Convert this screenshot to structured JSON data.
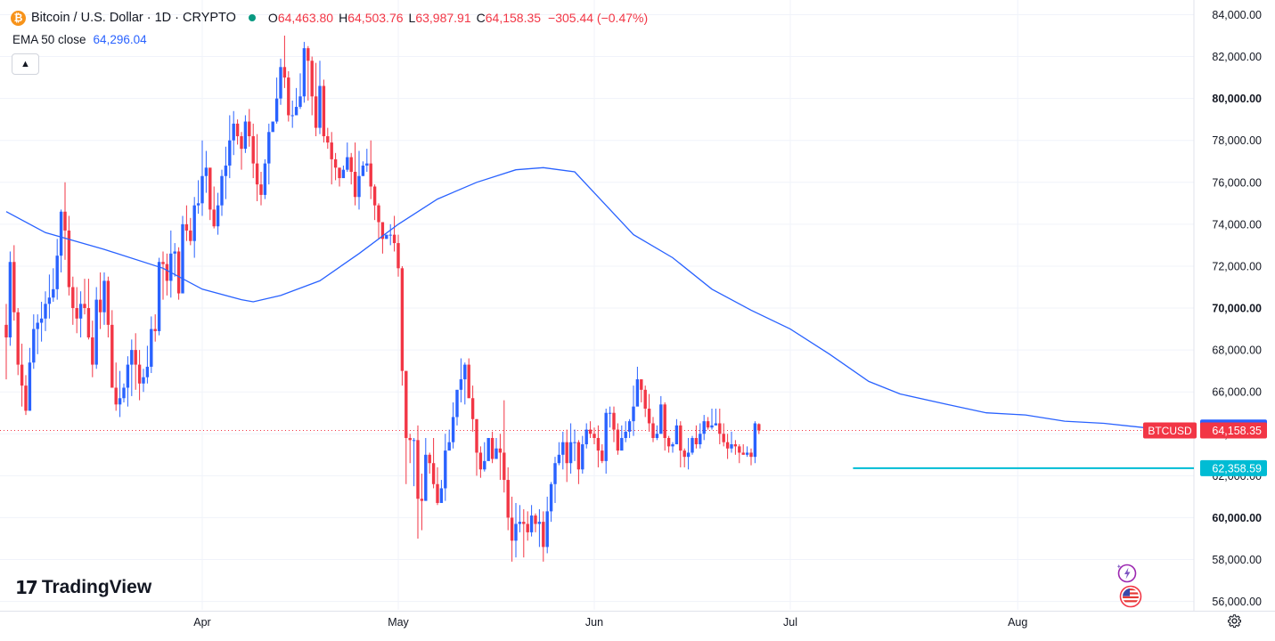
{
  "header": {
    "coin_icon_glyph": "₿",
    "symbol_title": "Bitcoin / U.S. Dollar · 1D · CRYPTO",
    "market_status": "open",
    "status_color": "#089981",
    "ohlc": [
      {
        "label": "O",
        "value": "64,463.80"
      },
      {
        "label": "H",
        "value": "64,503.76"
      },
      {
        "label": "L",
        "value": "63,987.91"
      },
      {
        "label": "C",
        "value": "64,158.35"
      }
    ],
    "change": "−305.44 (−0.47%)"
  },
  "indicator": {
    "label": "EMA 50 close",
    "value": "64,296.04"
  },
  "collapse_glyph": "▲",
  "logo_text": "TradingView",
  "logo_mark": "17",
  "colors": {
    "up": "#2962ff",
    "down": "#f23645",
    "ema": "#2962ff",
    "hline": "#00bcd4",
    "grid": "#f0f3fa",
    "text": "#131722"
  },
  "price_labels": [
    {
      "symbol": "BTCUSD",
      "value": "64,158.35",
      "price": 64158.35,
      "color": "#f23645"
    },
    {
      "value": "64,296.04",
      "price": 64296.04,
      "color": "#2962ff"
    },
    {
      "value": "62,358.59",
      "price": 62358.59,
      "color": "#00bcd4"
    }
  ],
  "chart_data": {
    "type": "candlestick",
    "title": "Bitcoin / U.S. Dollar · 1D · CRYPTO",
    "x_labels": [
      "Apr",
      "May",
      "Jun",
      "Jul",
      "Aug"
    ],
    "y_ticks": [
      56000,
      58000,
      60000,
      62000,
      64000,
      66000,
      68000,
      70000,
      72000,
      74000,
      76000,
      78000,
      80000,
      82000,
      84000
    ],
    "y_tick_labels": [
      "56,000.00",
      "58,000.00",
      "60,000.00",
      "62,000.00",
      "64,000.00",
      "66,000.00",
      "68,000.00",
      "70,000.00",
      "72,000.00",
      "74,000.00",
      "76,000.00",
      "78,000.00",
      "80,000.00",
      "82,000.00",
      "84,000.00"
    ],
    "ylim": [
      55600,
      84700
    ],
    "grid": true,
    "series_ema_name": "EMA 50 close",
    "horizontal_line": 62358.59,
    "candles": [
      [
        69200,
        68600,
        70200,
        66600
      ],
      [
        68600,
        72200,
        72700,
        68200
      ],
      [
        72200,
        69800,
        73000,
        69400
      ],
      [
        69800,
        67300,
        70000,
        66800
      ],
      [
        67300,
        66300,
        68300,
        65300
      ],
      [
        66300,
        65100,
        66800,
        64900
      ],
      [
        65100,
        67400,
        68100,
        65100
      ],
      [
        67400,
        69000,
        69700,
        67100
      ],
      [
        69000,
        69300,
        69700,
        67800
      ],
      [
        69300,
        69500,
        70300,
        68400
      ],
      [
        69500,
        70200,
        70800,
        68900
      ],
      [
        70200,
        70500,
        71600,
        69500
      ],
      [
        70500,
        70900,
        71900,
        70300
      ],
      [
        70900,
        72500,
        73300,
        70400
      ],
      [
        72500,
        74600,
        74700,
        71700
      ],
      [
        74600,
        73700,
        76000,
        72300
      ],
      [
        73700,
        71000,
        74400,
        70600
      ],
      [
        71000,
        70000,
        71500,
        69200
      ],
      [
        70000,
        69500,
        71000,
        68800
      ],
      [
        69500,
        70200,
        70800,
        68600
      ],
      [
        70200,
        70000,
        71400,
        69700
      ],
      [
        70000,
        68600,
        71400,
        68500
      ],
      [
        68600,
        67300,
        69400,
        66700
      ],
      [
        67300,
        70400,
        71000,
        67100
      ],
      [
        70400,
        69800,
        71700,
        69000
      ],
      [
        69800,
        71300,
        71700,
        69200
      ],
      [
        71300,
        69200,
        71500,
        68600
      ],
      [
        69200,
        66200,
        69900,
        66200
      ],
      [
        66200,
        65400,
        67400,
        65100
      ],
      [
        65400,
        65700,
        67000,
        64800
      ],
      [
        65700,
        66200,
        66400,
        65500
      ],
      [
        66200,
        67300,
        67700,
        65300
      ],
      [
        67300,
        68000,
        68500,
        65800
      ],
      [
        68000,
        67300,
        68800,
        66100
      ],
      [
        67300,
        66400,
        68000,
        65600
      ],
      [
        66400,
        66700,
        67100,
        66000
      ],
      [
        66700,
        67200,
        68200,
        66400
      ],
      [
        67200,
        69000,
        69600,
        66900
      ],
      [
        69000,
        68900,
        69700,
        68400
      ],
      [
        68900,
        72200,
        72400,
        68700
      ],
      [
        72200,
        72100,
        72700,
        70400
      ],
      [
        72100,
        71300,
        72600,
        70600
      ],
      [
        71300,
        72600,
        73700,
        70500
      ],
      [
        72600,
        72700,
        73100,
        71500
      ],
      [
        72700,
        70700,
        72900,
        70400
      ],
      [
        70700,
        74000,
        74400,
        70700
      ],
      [
        74000,
        73700,
        74900,
        73200
      ],
      [
        73700,
        73200,
        74300,
        73000
      ],
      [
        73200,
        74900,
        75300,
        72400
      ],
      [
        74900,
        75000,
        76100,
        74500
      ],
      [
        75000,
        76300,
        78000,
        74400
      ],
      [
        76300,
        76700,
        77500,
        75500
      ],
      [
        76700,
        74700,
        76600,
        74200
      ],
      [
        74700,
        73900,
        75800,
        73800
      ],
      [
        73900,
        74900,
        75500,
        73500
      ],
      [
        74900,
        76300,
        76600,
        74400
      ],
      [
        76300,
        76800,
        77700,
        75200
      ],
      [
        76800,
        78000,
        79200,
        76200
      ],
      [
        78000,
        78800,
        79400,
        77300
      ],
      [
        78800,
        78200,
        79000,
        77800
      ],
      [
        78200,
        77600,
        78400,
        76600
      ],
      [
        77600,
        78900,
        79200,
        77400
      ],
      [
        78900,
        78200,
        79500,
        77700
      ],
      [
        78200,
        76900,
        78800,
        76200
      ],
      [
        76900,
        75900,
        78300,
        75100
      ],
      [
        75900,
        75400,
        76500,
        74900
      ],
      [
        75400,
        76900,
        77100,
        75200
      ],
      [
        76900,
        78400,
        78800,
        75900
      ],
      [
        78400,
        78900,
        78800,
        78600
      ],
      [
        78900,
        80000,
        81000,
        78800
      ],
      [
        80000,
        81500,
        81900,
        79700
      ],
      [
        81500,
        81000,
        83000,
        80500
      ],
      [
        81000,
        79200,
        81300,
        78900
      ],
      [
        79200,
        79200,
        79900,
        78600
      ],
      [
        79200,
        79600,
        80500,
        79300
      ],
      [
        79600,
        80100,
        81200,
        79500
      ],
      [
        80100,
        82400,
        82700,
        79800
      ],
      [
        82400,
        81800,
        82500,
        79900
      ],
      [
        81800,
        80100,
        82000,
        79200
      ],
      [
        80100,
        78600,
        81700,
        78200
      ],
      [
        78600,
        80600,
        81800,
        78300
      ],
      [
        80600,
        78200,
        80900,
        77900
      ],
      [
        78200,
        77900,
        78600,
        77600
      ],
      [
        77900,
        77100,
        78400,
        75900
      ],
      [
        77100,
        76700,
        77400,
        76100
      ],
      [
        76700,
        76200,
        76700,
        75800
      ],
      [
        76200,
        76600,
        76800,
        76500
      ],
      [
        76600,
        77200,
        77900,
        76500
      ],
      [
        77200,
        76500,
        77400,
        75900
      ],
      [
        76500,
        75300,
        77900,
        74900
      ],
      [
        75300,
        76300,
        77500,
        74700
      ],
      [
        76300,
        76800,
        77000,
        76300
      ],
      [
        76800,
        76900,
        77600,
        76500
      ],
      [
        76900,
        75800,
        78000,
        75200
      ],
      [
        75800,
        74900,
        75900,
        74200
      ],
      [
        74900,
        74100,
        75000,
        73300
      ],
      [
        74100,
        73300,
        73800,
        72600
      ],
      [
        73300,
        73500,
        73500,
        73300
      ],
      [
        73500,
        73500,
        74000,
        73000
      ],
      [
        73500,
        73100,
        74400,
        72700
      ],
      [
        73100,
        71900,
        73500,
        71500
      ],
      [
        71900,
        67000,
        72000,
        66300
      ],
      [
        67000,
        63800,
        67000,
        61600
      ],
      [
        63800,
        63700,
        64000,
        62600
      ],
      [
        63700,
        63700,
        63800,
        61500
      ],
      [
        63700,
        60900,
        64400,
        59000
      ],
      [
        60900,
        60800,
        62100,
        59400
      ],
      [
        60800,
        63000,
        63800,
        60800
      ],
      [
        63000,
        62600,
        63100,
        62100
      ],
      [
        62600,
        61600,
        63800,
        61400
      ],
      [
        61600,
        60700,
        62400,
        60600
      ],
      [
        60700,
        61400,
        61800,
        60800
      ],
      [
        61400,
        63200,
        64000,
        60800
      ],
      [
        63200,
        63600,
        64200,
        63300
      ],
      [
        63600,
        64800,
        65500,
        63300
      ],
      [
        64800,
        66100,
        66100,
        64400
      ],
      [
        66100,
        66600,
        67600,
        65500
      ],
      [
        66600,
        67300,
        67400,
        65400
      ],
      [
        67300,
        65700,
        67600,
        65700
      ],
      [
        65700,
        64700,
        66300,
        64100
      ],
      [
        64700,
        63100,
        64700,
        62000
      ],
      [
        63100,
        62300,
        63400,
        61900
      ],
      [
        62300,
        62700,
        63600,
        62200
      ],
      [
        62700,
        63800,
        63800,
        62800
      ],
      [
        63800,
        62800,
        64100,
        62600
      ],
      [
        62800,
        63300,
        63800,
        62800
      ],
      [
        63300,
        63100,
        64000,
        61800
      ],
      [
        63100,
        61800,
        65600,
        61200
      ],
      [
        61800,
        60000,
        62400,
        59400
      ],
      [
        60000,
        58900,
        61000,
        57900
      ],
      [
        58900,
        59700,
        60700,
        58100
      ],
      [
        59700,
        59800,
        60600,
        59300
      ],
      [
        59800,
        59700,
        60400,
        58100
      ],
      [
        59700,
        59300,
        60300,
        58900
      ],
      [
        59300,
        60100,
        60600,
        59100
      ],
      [
        60100,
        59700,
        60200,
        59300
      ],
      [
        59700,
        59800,
        60400,
        58600
      ],
      [
        59800,
        58600,
        60300,
        57900
      ],
      [
        58600,
        60300,
        61000,
        58300
      ],
      [
        60300,
        61600,
        61700,
        59800
      ],
      [
        61600,
        62600,
        62900,
        60700
      ],
      [
        62600,
        63000,
        63600,
        62500
      ],
      [
        63000,
        63600,
        64100,
        62300
      ],
      [
        63600,
        62600,
        64200,
        61700
      ],
      [
        62600,
        63600,
        64500,
        62100
      ],
      [
        63600,
        63600,
        64200,
        62700
      ],
      [
        63600,
        62300,
        63700,
        61600
      ],
      [
        62300,
        63500,
        63900,
        62100
      ],
      [
        63500,
        64200,
        64500,
        63300
      ],
      [
        64200,
        64000,
        64600,
        63800
      ],
      [
        64000,
        63800,
        64300,
        63500
      ],
      [
        63800,
        63200,
        64400,
        62400
      ],
      [
        63200,
        62700,
        63500,
        62600
      ],
      [
        62700,
        65000,
        65200,
        62100
      ],
      [
        65000,
        65000,
        65300,
        64300
      ],
      [
        65000,
        64200,
        65300,
        63600
      ],
      [
        64200,
        63200,
        64500,
        63000
      ],
      [
        63200,
        63800,
        64400,
        63500
      ],
      [
        63800,
        64100,
        64600,
        63600
      ],
      [
        64100,
        64600,
        64700,
        63800
      ],
      [
        64600,
        65300,
        66300,
        63900
      ],
      [
        65300,
        66600,
        67200,
        65400
      ],
      [
        66600,
        66100,
        66500,
        65500
      ],
      [
        66100,
        65200,
        66300,
        64800
      ],
      [
        65200,
        64500,
        65900,
        64100
      ],
      [
        64500,
        63800,
        64800,
        63600
      ],
      [
        63800,
        64000,
        64400,
        63700
      ],
      [
        64000,
        65400,
        65800,
        64000
      ],
      [
        65400,
        63800,
        65500,
        63200
      ],
      [
        63800,
        63400,
        63900,
        63100
      ],
      [
        63400,
        63500,
        63600,
        63100
      ],
      [
        63500,
        64400,
        64700,
        63500
      ],
      [
        64400,
        63200,
        64600,
        62400
      ],
      [
        63200,
        62900,
        63300,
        62400
      ],
      [
        62900,
        63100,
        63800,
        62300
      ],
      [
        63100,
        63800,
        63900,
        63000
      ],
      [
        63800,
        63500,
        64400,
        63300
      ],
      [
        63500,
        64000,
        64500,
        63300
      ],
      [
        64000,
        64600,
        64900,
        63700
      ],
      [
        64600,
        64300,
        64800,
        64200
      ],
      [
        64300,
        64400,
        65200,
        64200
      ],
      [
        64400,
        64500,
        65200,
        64400
      ],
      [
        64500,
        64000,
        65200,
        63500
      ],
      [
        64000,
        63600,
        64500,
        63400
      ],
      [
        63600,
        63300,
        64000,
        62800
      ],
      [
        63300,
        63500,
        64100,
        63100
      ],
      [
        63500,
        63400,
        63700,
        63000
      ],
      [
        63400,
        63100,
        63500,
        62600
      ],
      [
        63100,
        63000,
        63500,
        63000
      ],
      [
        63000,
        63100,
        63400,
        62900
      ],
      [
        63100,
        62900,
        63300,
        62500
      ],
      [
        62900,
        64500,
        64600,
        62600
      ],
      [
        64463.8,
        64158.35,
        64503.76,
        63987.91
      ]
    ],
    "ema": [
      [
        0,
        74600
      ],
      [
        10,
        73600
      ],
      [
        25,
        72800
      ],
      [
        40,
        71900
      ],
      [
        50,
        70900
      ],
      [
        60,
        70400
      ],
      [
        63,
        70300
      ],
      [
        70,
        70600
      ],
      [
        80,
        71300
      ],
      [
        90,
        72600
      ],
      [
        100,
        74000
      ],
      [
        110,
        75200
      ],
      [
        120,
        76000
      ],
      [
        130,
        76600
      ],
      [
        137,
        76700
      ],
      [
        145,
        76500
      ],
      [
        150,
        75500
      ],
      [
        160,
        73500
      ],
      [
        170,
        72400
      ],
      [
        180,
        70900
      ],
      [
        190,
        69900
      ],
      [
        200,
        69000
      ],
      [
        210,
        67800
      ],
      [
        220,
        66500
      ],
      [
        228,
        65900
      ],
      [
        240,
        65400
      ],
      [
        250,
        65000
      ],
      [
        260,
        64900
      ],
      [
        270,
        64600
      ],
      [
        280,
        64500
      ],
      [
        290,
        64300
      ],
      [
        297,
        64296
      ]
    ]
  },
  "settings_icon": "gear-icon",
  "float_icons": [
    "sparkle-icon",
    "flag-icon"
  ]
}
